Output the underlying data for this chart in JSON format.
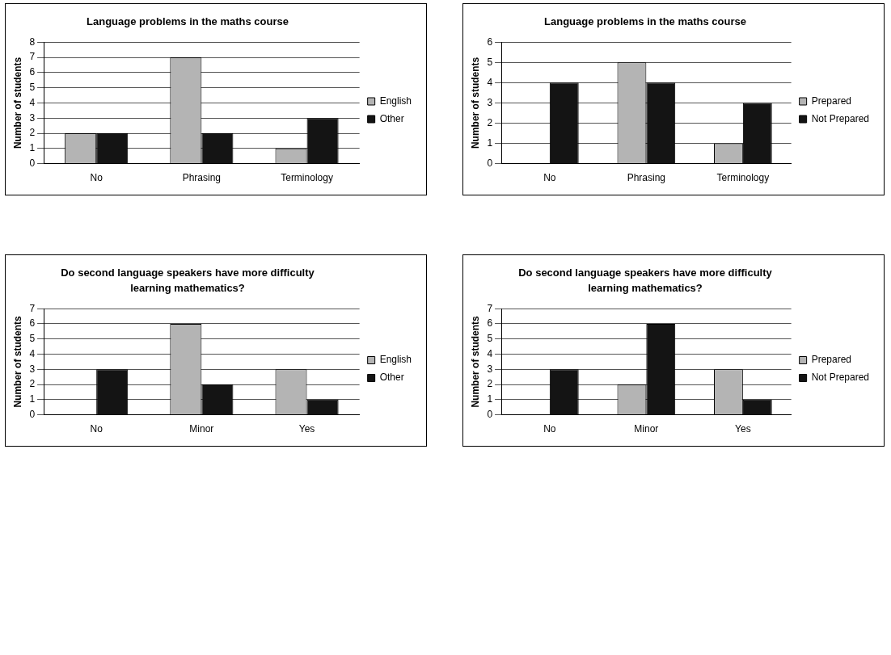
{
  "chart_data": [
    {
      "type": "bar",
      "title": "Language problems in the maths course",
      "ylabel": "Number of students",
      "categories": [
        "No",
        "Phrasing",
        "Terminology"
      ],
      "series": [
        {
          "name": "English",
          "color": "#b4b4b4",
          "values": [
            2,
            7,
            1
          ]
        },
        {
          "name": "Other",
          "color": "#141414",
          "values": [
            2,
            2,
            3
          ]
        }
      ],
      "ylim": [
        0,
        8
      ],
      "yticks": [
        0,
        1,
        2,
        3,
        4,
        5,
        6,
        7,
        8
      ],
      "grid": "y",
      "legend": "right"
    },
    {
      "type": "bar",
      "title": "Language problems in the maths course",
      "ylabel": "Number of students",
      "categories": [
        "No",
        "Phrasing",
        "Terminology"
      ],
      "series": [
        {
          "name": "Prepared",
          "color": "#b4b4b4",
          "values": [
            0,
            5,
            1
          ]
        },
        {
          "name": "Not Prepared",
          "color": "#141414",
          "values": [
            4,
            4,
            3
          ]
        }
      ],
      "ylim": [
        0,
        6
      ],
      "yticks": [
        0,
        1,
        2,
        3,
        4,
        5,
        6
      ],
      "grid": "y",
      "legend": "right"
    },
    {
      "type": "bar",
      "title": "Do second language speakers have more difficulty learning mathematics?",
      "ylabel": "Number of students",
      "categories": [
        "No",
        "Minor",
        "Yes"
      ],
      "series": [
        {
          "name": "English",
          "color": "#b4b4b4",
          "values": [
            0,
            6,
            3
          ]
        },
        {
          "name": "Other",
          "color": "#141414",
          "values": [
            3,
            2,
            1
          ]
        }
      ],
      "ylim": [
        0,
        7
      ],
      "yticks": [
        0,
        1,
        2,
        3,
        4,
        5,
        6,
        7
      ],
      "grid": "y",
      "legend": "right"
    },
    {
      "type": "bar",
      "title": "Do second language speakers have more difficulty learning mathematics?",
      "ylabel": "Number of students",
      "categories": [
        "No",
        "Minor",
        "Yes"
      ],
      "series": [
        {
          "name": "Prepared",
          "color": "#b4b4b4",
          "values": [
            0,
            2,
            3
          ]
        },
        {
          "name": "Not Prepared",
          "color": "#141414",
          "values": [
            3,
            6,
            1
          ]
        }
      ],
      "ylim": [
        0,
        7
      ],
      "yticks": [
        0,
        1,
        2,
        3,
        4,
        5,
        6,
        7
      ],
      "grid": "y",
      "legend": "right"
    }
  ]
}
